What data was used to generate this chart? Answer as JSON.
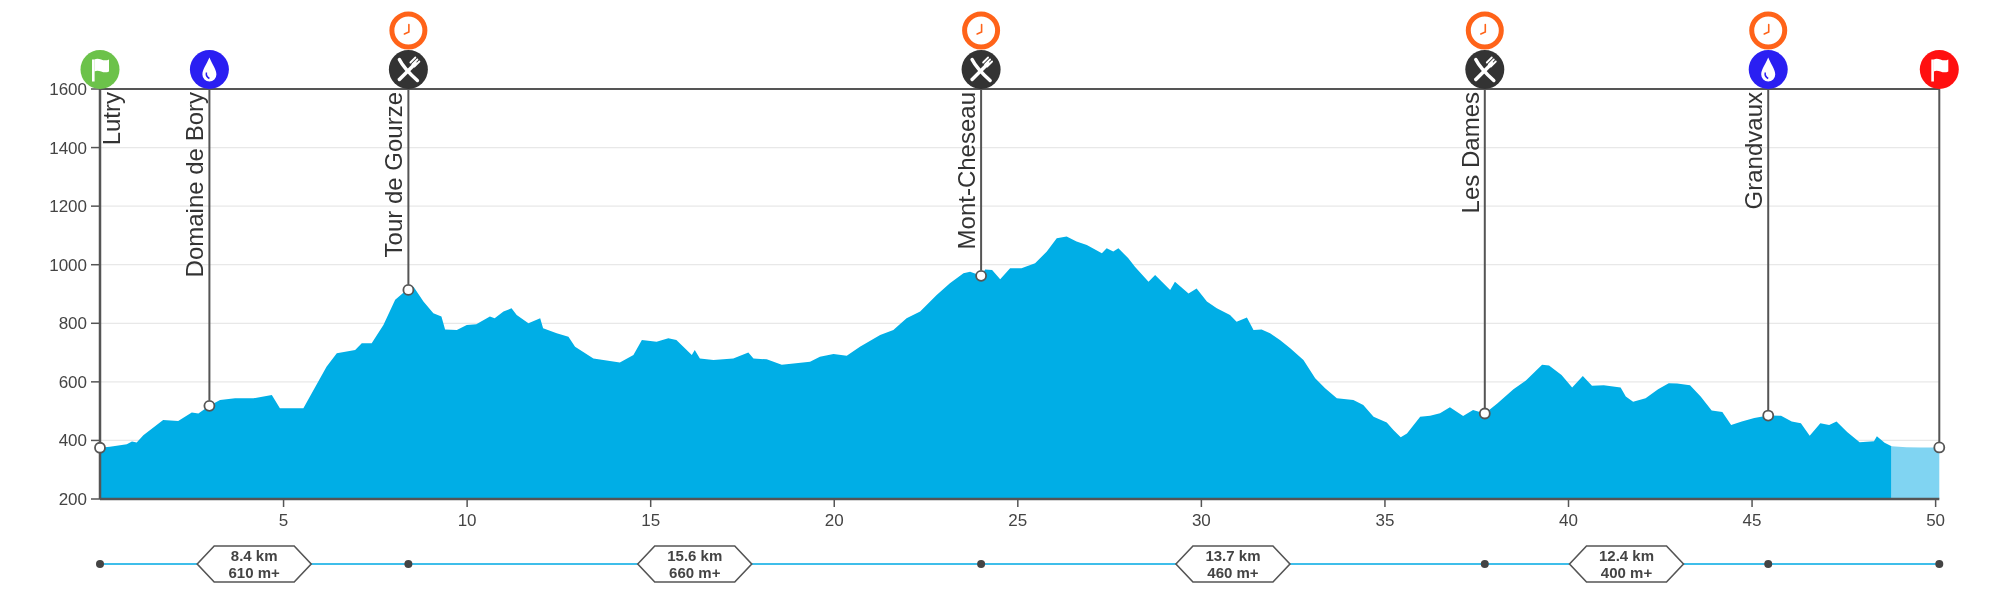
{
  "chart_data": {
    "type": "area",
    "xlim": [
      0,
      50.1
    ],
    "xticks": [
      5,
      10,
      15,
      20,
      25,
      30,
      35,
      40,
      45,
      50
    ],
    "ylim": [
      200,
      1600
    ],
    "yticks": [
      200,
      400,
      600,
      800,
      1000,
      1200,
      1400,
      1600
    ],
    "grid": "y",
    "series": [
      {
        "color": "#00aee6",
        "x": [
          0,
          0.27,
          0.73,
          0.87,
          1.0,
          1.18,
          1.72,
          2.13,
          2.5,
          2.68,
          2.98,
          3.27,
          3.68,
          4.18,
          4.68,
          4.9,
          5.54,
          6.17,
          6.45,
          6.95,
          7.13,
          7.4,
          7.72,
          8.04,
          8.4,
          8.54,
          8.81,
          9.08,
          9.3,
          9.4,
          9.72,
          9.99,
          10.25,
          10.62,
          10.75,
          10.99,
          11.21,
          11.35,
          11.67,
          11.99,
          12.07,
          12.44,
          12.76,
          12.94,
          13.44,
          14.16,
          14.53,
          14.76,
          15.16,
          15.48,
          15.7,
          16.12,
          16.2,
          16.34,
          16.71,
          17.25,
          17.66,
          17.8,
          18.16,
          18.57,
          19.34,
          19.61,
          19.98,
          20.34,
          20.7,
          21.25,
          21.61,
          21.97,
          22.34,
          22.79,
          23.15,
          23.52,
          23.7,
          24.0,
          24.11,
          24.3,
          24.52,
          24.79,
          25.1,
          25.47,
          25.79,
          26.06,
          26.33,
          26.6,
          26.88,
          27.29,
          27.42,
          27.6,
          27.74,
          28.01,
          28.19,
          28.56,
          28.74,
          29.15,
          29.28,
          29.65,
          29.87,
          30.15,
          30.42,
          30.78,
          30.96,
          31.24,
          31.42,
          31.64,
          31.87,
          32.14,
          32.42,
          32.78,
          33.1,
          33.37,
          33.69,
          34.14,
          34.41,
          34.69,
          35.05,
          35.23,
          35.43,
          35.6,
          35.96,
          36.23,
          36.5,
          36.77,
          37.13,
          37.4,
          37.72,
          38.06,
          38.5,
          38.84,
          39.28,
          39.47,
          39.81,
          40.1,
          40.39,
          40.64,
          40.96,
          41.42,
          41.56,
          41.76,
          42.1,
          42.44,
          42.73,
          42.96,
          43.31,
          43.6,
          43.9,
          44.19,
          44.43,
          44.72,
          45.06,
          45.44,
          45.79,
          46.08,
          46.33,
          46.57,
          46.86,
          47.1,
          47.3,
          47.59,
          47.93,
          48.32,
          48.4,
          48.61,
          48.8
        ],
        "values": [
          375,
          378,
          387,
          396,
          393,
          418,
          470,
          466,
          495,
          492,
          518,
          538,
          544,
          544,
          555,
          510,
          510,
          652,
          698,
          709,
          732,
          732,
          794,
          880,
          919,
          925,
          874,
          834,
          823,
          779,
          777,
          794,
          797,
          823,
          817,
          840,
          851,
          828,
          800,
          817,
          783,
          766,
          754,
          720,
          680,
          666,
          692,
          743,
          737,
          749,
          743,
          692,
          709,
          680,
          675,
          680,
          700,
          680,
          677,
          658,
          669,
          686,
          695,
          689,
          720,
          760,
          777,
          817,
          840,
          897,
          937,
          971,
          976,
          962,
          984,
          982,
          950,
          988,
          988,
          1005,
          1045,
          1090,
          1096,
          1079,
          1067,
          1039,
          1056,
          1045,
          1056,
          1022,
          993,
          942,
          965,
          914,
          942,
          902,
          919,
          874,
          851,
          828,
          805,
          820,
          777,
          779,
          766,
          743,
          715,
          675,
          612,
          578,
          544,
          538,
          521,
          481,
          461,
          436,
          411,
          424,
          481,
          484,
          493,
          513,
          483,
          504,
          492,
          526,
          575,
          605,
          658,
          656,
          623,
          581,
          620,
          587,
          588,
          581,
          550,
          532,
          544,
          575,
          595,
          594,
          588,
          550,
          502,
          497,
          453,
          465,
          477,
          485,
          484,
          465,
          459,
          416,
          459,
          453,
          465,
          429,
          394,
          397,
          414,
          392,
          380
        ]
      },
      {
        "color": "#80d4f2",
        "x": [
          48.8,
          49.2,
          49.6,
          50.1
        ],
        "values": [
          380,
          377,
          376,
          376
        ]
      },
      {
        "type": "scatter",
        "color": "#ffffff",
        "marker": "circle",
        "x": [
          0,
          2.98,
          8.4,
          24.0,
          37.72,
          45.44,
          50.1
        ],
        "values": [
          375,
          518,
          914,
          962,
          492,
          485,
          376
        ]
      }
    ],
    "annotations": [
      "Lutry",
      {
        "text": "Domaine de Bory",
        "x": 2.98,
        "y": 518
      },
      {
        "text": "Tour de Gourze",
        "x": 8.4,
        "y": 914
      },
      {
        "text": "Mont-Cheseau",
        "x": 24.0,
        "y": 962
      },
      {
        "text": "Les Dames",
        "x": 37.72,
        "y": 492
      },
      {
        "text": "Grandvaux",
        "x": 45.44,
        "y": 485
      },
      "8.4 km",
      "610 m+",
      "15.6 km",
      "660 m+",
      "13.7 km",
      "460 m+",
      "12.4 km",
      "400 m+"
    ]
  }
}
